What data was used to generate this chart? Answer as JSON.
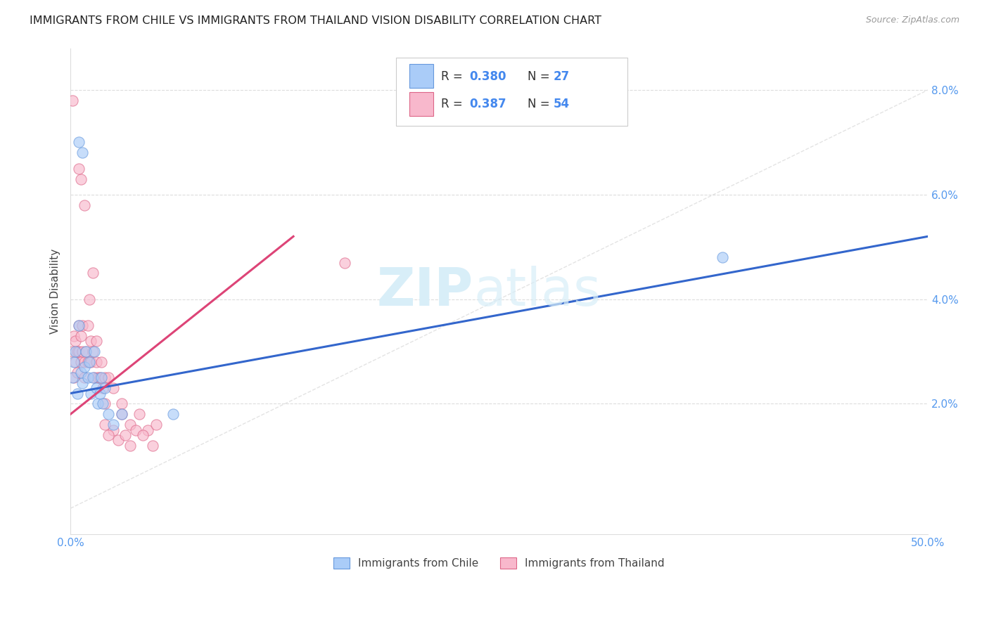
{
  "title": "IMMIGRANTS FROM CHILE VS IMMIGRANTS FROM THAILAND VISION DISABILITY CORRELATION CHART",
  "source": "Source: ZipAtlas.com",
  "ylabel": "Vision Disability",
  "xlim": [
    0.0,
    0.5
  ],
  "ylim": [
    -0.005,
    0.088
  ],
  "xticks": [
    0.0,
    0.1,
    0.2,
    0.3,
    0.4,
    0.5
  ],
  "xtick_labels": [
    "0.0%",
    "",
    "",
    "",
    "",
    "50.0%"
  ],
  "yticks": [
    0.02,
    0.04,
    0.06,
    0.08
  ],
  "ytick_labels": [
    "2.0%",
    "4.0%",
    "6.0%",
    "8.0%"
  ],
  "legend_label_chile": "Immigrants from Chile",
  "legend_label_thailand": "Immigrants from Thailand",
  "chile_color": "#aaccf8",
  "thailand_color": "#f8b8cc",
  "chile_edge_color": "#6699dd",
  "thailand_edge_color": "#dd6688",
  "chile_line_color": "#3366cc",
  "thailand_line_color": "#dd4477",
  "diag_line_color": "#dddddd",
  "watermark": "ZIPatlas",
  "watermark_color": "#d8eef8",
  "background_color": "#ffffff",
  "grid_color": "#dddddd",
  "chile_line": [
    [
      0.0,
      0.022
    ],
    [
      0.5,
      0.052
    ]
  ],
  "thailand_line": [
    [
      0.0,
      0.018
    ],
    [
      0.13,
      0.052
    ]
  ],
  "chile_scatter": [
    [
      0.001,
      0.025
    ],
    [
      0.002,
      0.028
    ],
    [
      0.003,
      0.03
    ],
    [
      0.004,
      0.022
    ],
    [
      0.005,
      0.035
    ],
    [
      0.006,
      0.026
    ],
    [
      0.007,
      0.024
    ],
    [
      0.008,
      0.027
    ],
    [
      0.009,
      0.03
    ],
    [
      0.01,
      0.025
    ],
    [
      0.011,
      0.028
    ],
    [
      0.012,
      0.022
    ],
    [
      0.013,
      0.025
    ],
    [
      0.014,
      0.03
    ],
    [
      0.015,
      0.023
    ],
    [
      0.016,
      0.02
    ],
    [
      0.017,
      0.022
    ],
    [
      0.018,
      0.025
    ],
    [
      0.019,
      0.02
    ],
    [
      0.02,
      0.023
    ],
    [
      0.022,
      0.018
    ],
    [
      0.025,
      0.016
    ],
    [
      0.03,
      0.018
    ],
    [
      0.005,
      0.07
    ],
    [
      0.007,
      0.068
    ],
    [
      0.38,
      0.048
    ],
    [
      0.06,
      0.018
    ]
  ],
  "thailand_scatter": [
    [
      0.001,
      0.078
    ],
    [
      0.001,
      0.03
    ],
    [
      0.002,
      0.033
    ],
    [
      0.002,
      0.025
    ],
    [
      0.003,
      0.028
    ],
    [
      0.003,
      0.032
    ],
    [
      0.004,
      0.03
    ],
    [
      0.004,
      0.026
    ],
    [
      0.005,
      0.03
    ],
    [
      0.005,
      0.035
    ],
    [
      0.006,
      0.028
    ],
    [
      0.006,
      0.033
    ],
    [
      0.007,
      0.03
    ],
    [
      0.007,
      0.035
    ],
    [
      0.008,
      0.025
    ],
    [
      0.008,
      0.028
    ],
    [
      0.009,
      0.03
    ],
    [
      0.01,
      0.035
    ],
    [
      0.01,
      0.028
    ],
    [
      0.011,
      0.04
    ],
    [
      0.012,
      0.032
    ],
    [
      0.012,
      0.028
    ],
    [
      0.013,
      0.03
    ],
    [
      0.014,
      0.025
    ],
    [
      0.015,
      0.028
    ],
    [
      0.015,
      0.032
    ],
    [
      0.016,
      0.025
    ],
    [
      0.017,
      0.025
    ],
    [
      0.018,
      0.028
    ],
    [
      0.019,
      0.023
    ],
    [
      0.02,
      0.025
    ],
    [
      0.02,
      0.02
    ],
    [
      0.022,
      0.025
    ],
    [
      0.025,
      0.023
    ],
    [
      0.03,
      0.02
    ],
    [
      0.006,
      0.063
    ],
    [
      0.008,
      0.058
    ],
    [
      0.005,
      0.065
    ],
    [
      0.013,
      0.045
    ],
    [
      0.16,
      0.047
    ],
    [
      0.025,
      0.015
    ],
    [
      0.03,
      0.018
    ],
    [
      0.035,
      0.016
    ],
    [
      0.04,
      0.018
    ],
    [
      0.045,
      0.015
    ],
    [
      0.05,
      0.016
    ],
    [
      0.028,
      0.013
    ],
    [
      0.032,
      0.014
    ],
    [
      0.038,
      0.015
    ],
    [
      0.02,
      0.016
    ],
    [
      0.022,
      0.014
    ],
    [
      0.035,
      0.012
    ],
    [
      0.042,
      0.014
    ],
    [
      0.048,
      0.012
    ]
  ]
}
